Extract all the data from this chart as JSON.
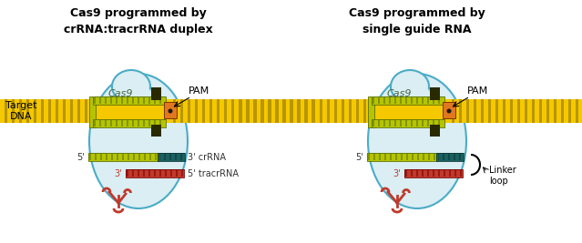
{
  "title_left": "Cas9 programmed by\ncrRNA:tracrRNA duplex",
  "title_right": "Cas9 programmed by\nsingle guide RNA",
  "label_target_dna": "Target\nDNA",
  "label_cas9": "Cas9",
  "label_pam": "PAM",
  "label_5prime": "5'",
  "label_3prime_crRNA": "3' crRNA",
  "label_5prime_tracrRNA": "5' tracrRNA",
  "label_3prime_red": "3'",
  "label_linker": "Linker\nloop",
  "color_background": "#ffffff",
  "color_cas9_fill": "#daeef3",
  "color_cas9_outline": "#4bacc6",
  "color_dna_yellow": "#f5c800",
  "color_dna_stripe": "#b89600",
  "color_rna_green_light": "#b5c400",
  "color_rna_green_dark": "#5a7000",
  "color_crRNA_teal": "#1a6060",
  "color_tracrRNA_red": "#c0392b",
  "color_pam_orange": "#e07820",
  "color_pam_dot": "#1a1a1a",
  "color_clamp_dark": "#2a2a00",
  "color_title": "#000000",
  "color_label_red": "#c0392b",
  "figsize": [
    6.39,
    2.67
  ],
  "dpi": 100
}
